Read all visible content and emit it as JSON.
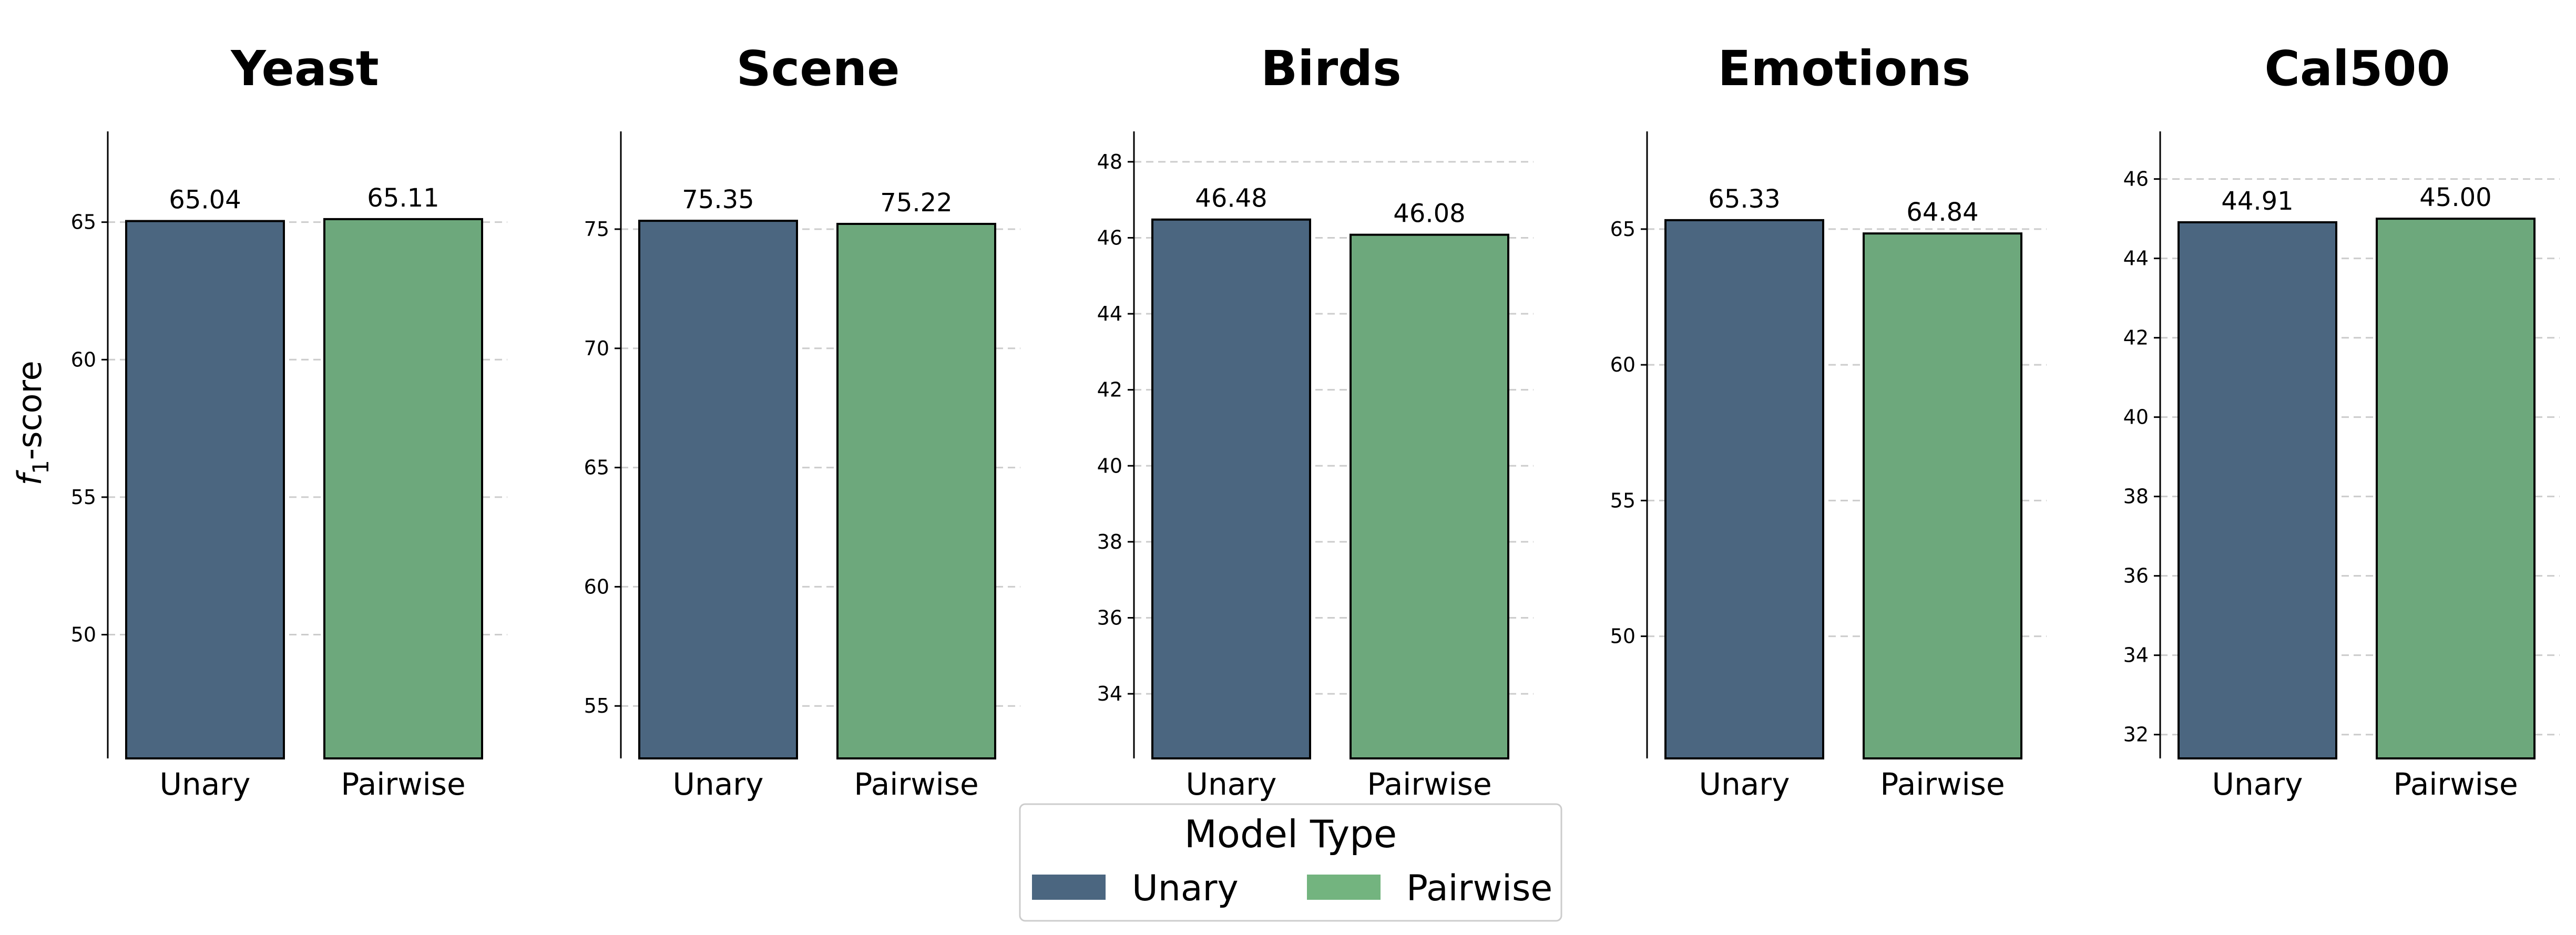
{
  "chart_data": [
    {
      "type": "bar",
      "title": "Yeast",
      "categories": [
        "Unary",
        "Pairwise"
      ],
      "values": [
        65.04,
        65.11
      ],
      "data_labels": [
        "65.04",
        "65.11"
      ],
      "ylabel": "f1-score",
      "ylim": [
        45.5,
        68.3
      ],
      "yticks": [
        50,
        55,
        60,
        65
      ],
      "grid": "y-dashed"
    },
    {
      "type": "bar",
      "title": "Scene",
      "categories": [
        "Unary",
        "Pairwise"
      ],
      "values": [
        75.35,
        75.22
      ],
      "data_labels": [
        "75.35",
        "75.22"
      ],
      "ylabel": "",
      "ylim": [
        52.8,
        79.1
      ],
      "yticks": [
        55,
        60,
        65,
        70,
        75
      ],
      "grid": "y-dashed"
    },
    {
      "type": "bar",
      "title": "Birds",
      "categories": [
        "Unary",
        "Pairwise"
      ],
      "values": [
        46.48,
        46.08
      ],
      "data_labels": [
        "46.48",
        "46.08"
      ],
      "ylabel": "",
      "ylim": [
        32.3,
        48.8
      ],
      "yticks": [
        34,
        36,
        38,
        40,
        42,
        44,
        46,
        48
      ],
      "grid": "y-dashed"
    },
    {
      "type": "bar",
      "title": "Emotions",
      "categories": [
        "Unary",
        "Pairwise"
      ],
      "values": [
        65.33,
        64.84
      ],
      "data_labels": [
        "65.33",
        "64.84"
      ],
      "ylabel": "",
      "ylim": [
        45.5,
        68.6
      ],
      "yticks": [
        50,
        55,
        60,
        65
      ],
      "grid": "y-dashed"
    },
    {
      "type": "bar",
      "title": "Cal500",
      "categories": [
        "Unary",
        "Pairwise"
      ],
      "values": [
        44.91,
        45.0
      ],
      "data_labels": [
        "44.91",
        "45.00"
      ],
      "ylabel": "",
      "ylim": [
        31.4,
        47.2
      ],
      "yticks": [
        32,
        34,
        36,
        38,
        40,
        42,
        44,
        46
      ],
      "grid": "y-dashed"
    }
  ],
  "legend": {
    "title": "Model Type",
    "placement": "bottom-center",
    "items": [
      {
        "label": "Unary",
        "color": "#4b6680"
      },
      {
        "label": "Pairwise",
        "color": "#6fa77a"
      }
    ]
  },
  "ylabel_prefix": "f",
  "ylabel_sub": "1",
  "ylabel_suffix": "-score",
  "colors": {
    "unary": "#4b6680",
    "pairwise": "#6da87c",
    "legend_pairwise": "#73b47f",
    "grid": "#cccccc",
    "axis": "#000000"
  }
}
